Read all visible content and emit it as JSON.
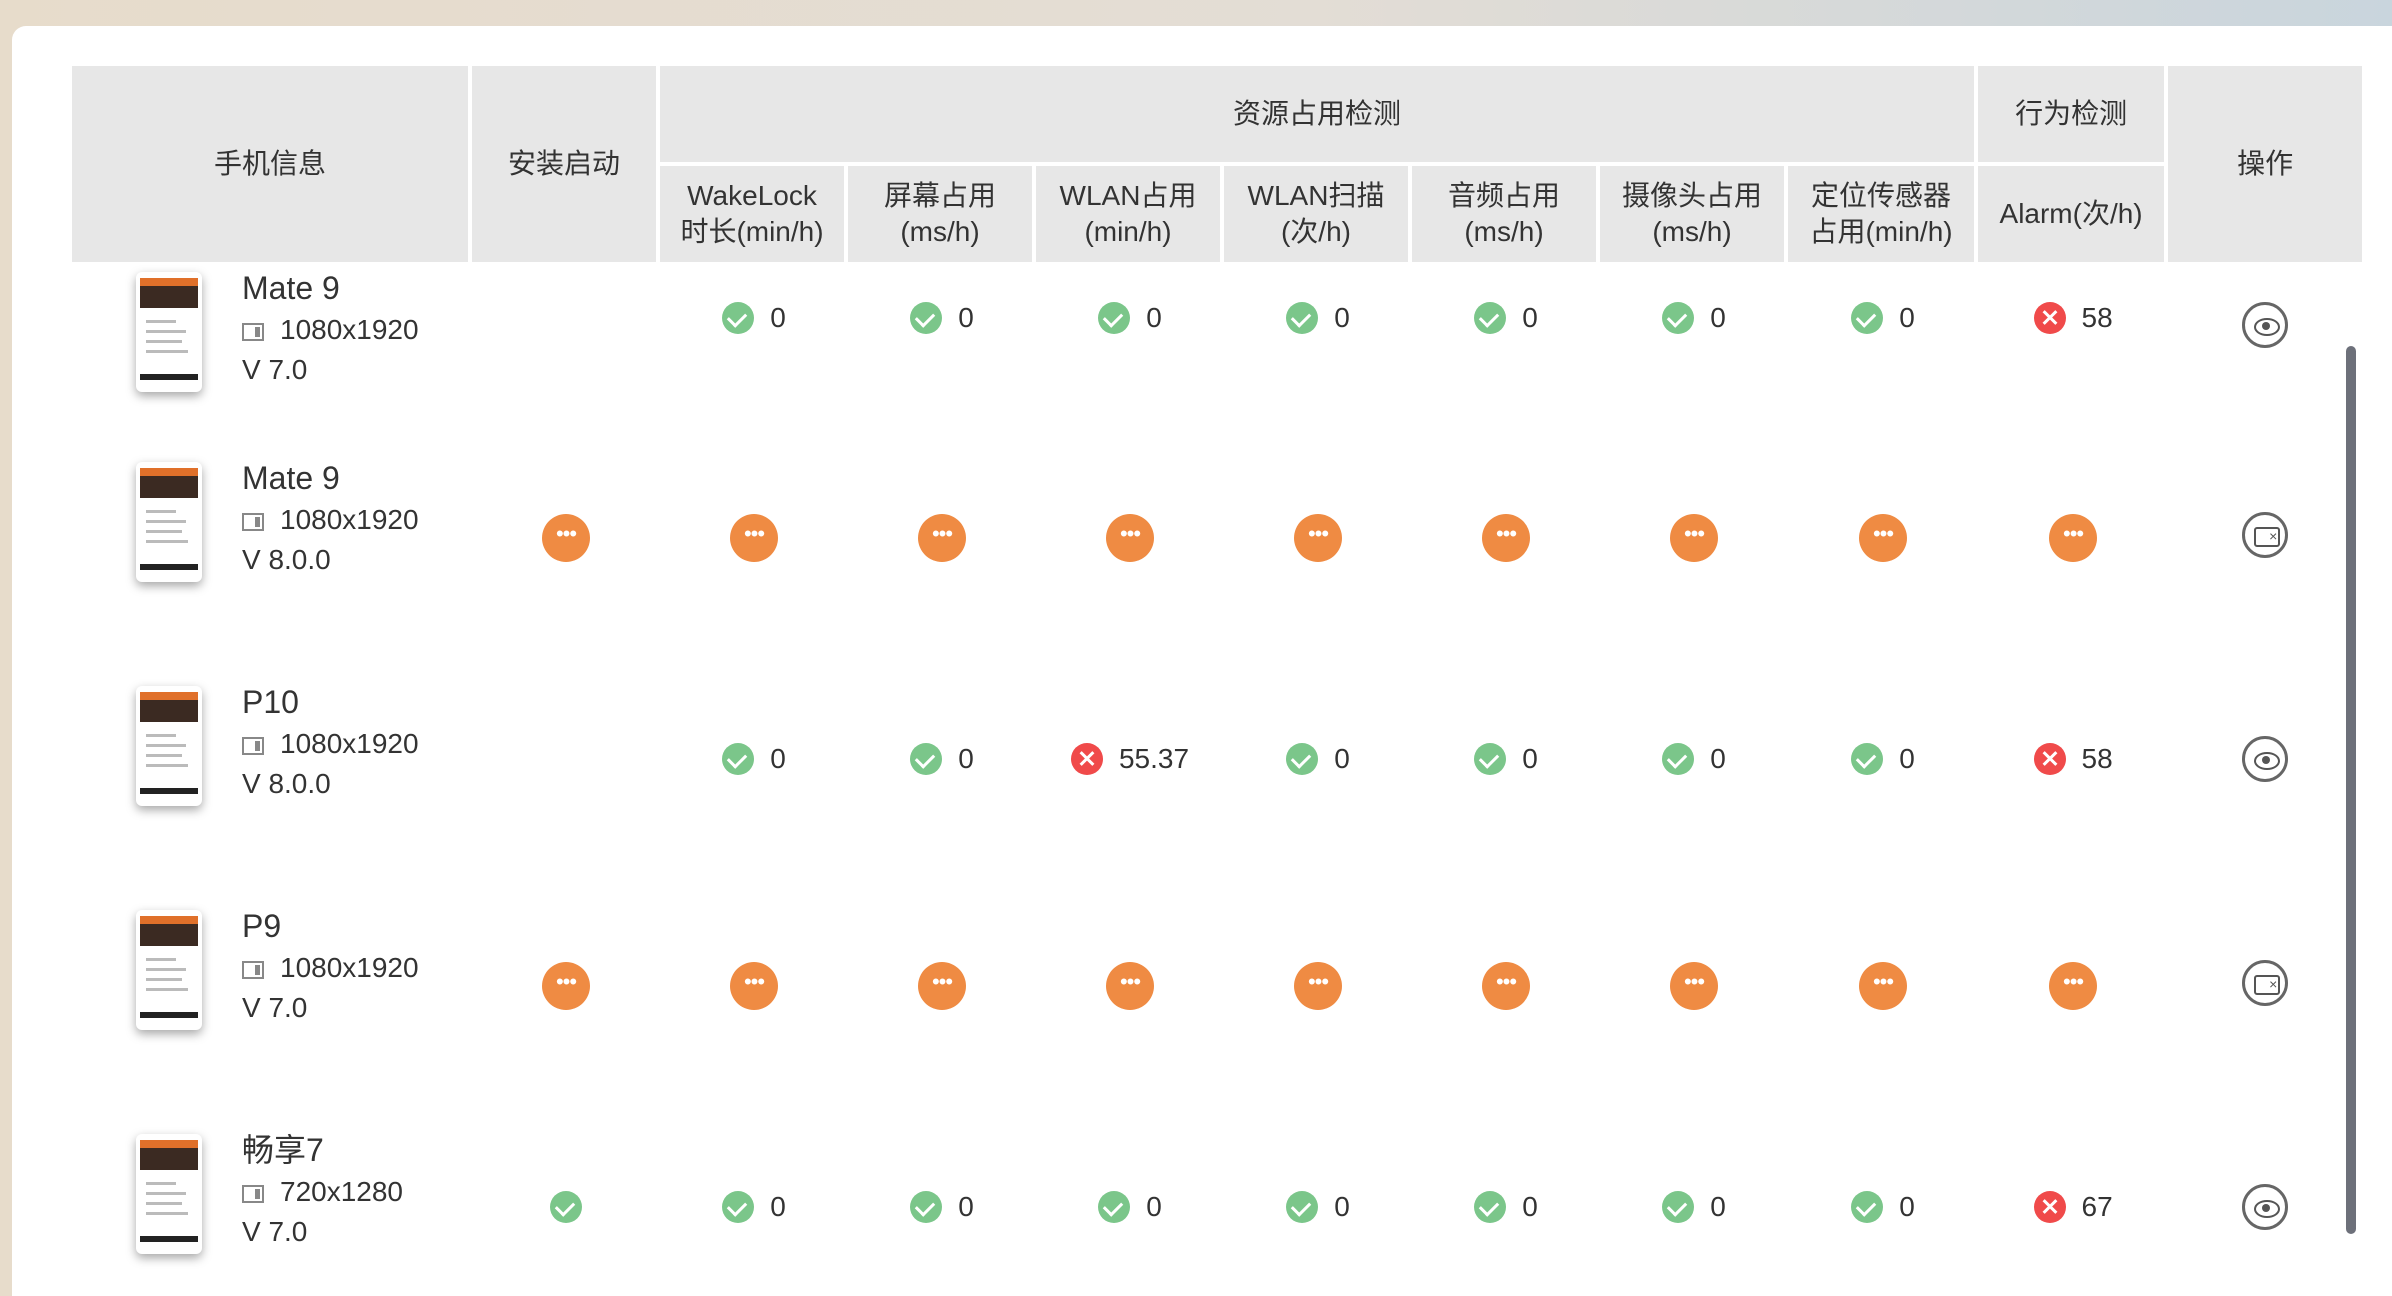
{
  "header": {
    "phone_info": "手机信息",
    "install_start": "安装启动",
    "resource_group": "资源占用检测",
    "behavior_group": "行为检测",
    "operation": "操作",
    "wakelock_1": "WakeLock",
    "wakelock_2": "时长(min/h)",
    "screen_1": "屏幕占用",
    "screen_2": "(ms/h)",
    "wlan_1": "WLAN占用",
    "wlan_2": "(min/h)",
    "wlanscan_1": "WLAN扫描",
    "wlanscan_2": "(次/h)",
    "audio_1": "音频占用",
    "audio_2": "(ms/h)",
    "camera_1": "摄像头占用",
    "camera_2": "(ms/h)",
    "location_1": "定位传感器",
    "location_2": "占用(min/h)",
    "alarm": "Alarm(次/h)"
  },
  "rows": [
    {
      "name": "Mate 9",
      "resolution": "1080x1920",
      "version": "V 7.0",
      "install": "none",
      "cells": [
        {
          "status": "ok",
          "value": "0"
        },
        {
          "status": "ok",
          "value": "0"
        },
        {
          "status": "ok",
          "value": "0"
        },
        {
          "status": "ok",
          "value": "0"
        },
        {
          "status": "ok",
          "value": "0"
        },
        {
          "status": "ok",
          "value": "0"
        },
        {
          "status": "ok",
          "value": "0"
        },
        {
          "status": "bad",
          "value": "58"
        }
      ],
      "op": "eye"
    },
    {
      "name": "Mate 9",
      "resolution": "1080x1920",
      "version": "V 8.0.0",
      "install": "pending",
      "cells": [
        {
          "status": "pending"
        },
        {
          "status": "pending"
        },
        {
          "status": "pending"
        },
        {
          "status": "pending"
        },
        {
          "status": "pending"
        },
        {
          "status": "pending"
        },
        {
          "status": "pending"
        },
        {
          "status": "pending"
        }
      ],
      "op": "screen"
    },
    {
      "name": "P10",
      "resolution": "1080x1920",
      "version": "V 8.0.0",
      "install": "none",
      "cells": [
        {
          "status": "ok",
          "value": "0"
        },
        {
          "status": "ok",
          "value": "0"
        },
        {
          "status": "bad",
          "value": "55.37"
        },
        {
          "status": "ok",
          "value": "0"
        },
        {
          "status": "ok",
          "value": "0"
        },
        {
          "status": "ok",
          "value": "0"
        },
        {
          "status": "ok",
          "value": "0"
        },
        {
          "status": "bad",
          "value": "58"
        }
      ],
      "op": "eye"
    },
    {
      "name": "P9",
      "resolution": "1080x1920",
      "version": "V 7.0",
      "install": "pending",
      "cells": [
        {
          "status": "pending"
        },
        {
          "status": "pending"
        },
        {
          "status": "pending"
        },
        {
          "status": "pending"
        },
        {
          "status": "pending"
        },
        {
          "status": "pending"
        },
        {
          "status": "pending"
        },
        {
          "status": "pending"
        }
      ],
      "op": "screen"
    },
    {
      "name": "畅享7",
      "resolution": "720x1280",
      "version": "V 7.0",
      "install": "ok",
      "cells": [
        {
          "status": "ok",
          "value": "0"
        },
        {
          "status": "ok",
          "value": "0"
        },
        {
          "status": "ok",
          "value": "0"
        },
        {
          "status": "ok",
          "value": "0"
        },
        {
          "status": "ok",
          "value": "0"
        },
        {
          "status": "ok",
          "value": "0"
        },
        {
          "status": "ok",
          "value": "0"
        },
        {
          "status": "bad",
          "value": "67"
        }
      ],
      "op": "eye"
    }
  ],
  "icons": {
    "ok": "check-circle-icon",
    "bad": "x-circle-icon",
    "pending": "ellipsis-circle-icon",
    "eye": "eye-icon",
    "screen": "screen-close-icon"
  },
  "colors": {
    "ok": "#7bc68a",
    "bad": "#f04a4a",
    "pending": "#ef8b43",
    "header_bg": "#e7e7e7"
  }
}
